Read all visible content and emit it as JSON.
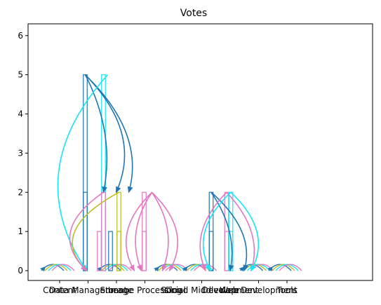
{
  "chart_data": {
    "type": "bar",
    "title": "Votes",
    "xlabel": "",
    "ylabel": "",
    "ylim": [
      -0.25,
      6.3
    ],
    "yticks": [
      0,
      1,
      2,
      3,
      4,
      5,
      6
    ],
    "categories": [
      "Content",
      "Data Management",
      "Storage",
      "Image Processing",
      "Social",
      "Cloud Middleware",
      "Development",
      "Web Development",
      "Tools"
    ],
    "tick_labels": [
      "Content",
      "Data Management",
      "Storage",
      "Image Processing",
      "Social",
      "Cloud Middleware",
      "Development",
      "Web Development",
      "Tools"
    ],
    "groups": [
      {
        "name": "Content",
        "bars": []
      },
      {
        "name": "Data Management",
        "bars": [
          {
            "value": 5,
            "color": "#1f77b4"
          },
          {
            "value": 2,
            "color": "#1f77b4"
          },
          {
            "value": 1,
            "color": "#e377c2"
          },
          {
            "value": 5,
            "color": "#17e6f5"
          },
          {
            "value": 2,
            "color": "#e377c2"
          },
          {
            "value": 1,
            "color": "#1f77b4"
          },
          {
            "value": 2,
            "color": "#bcbd22"
          },
          {
            "value": 1,
            "color": "#bcbd22"
          }
        ]
      },
      {
        "name": "Storage",
        "bars": []
      },
      {
        "name": "Image Processing",
        "bars": [
          {
            "value": 2,
            "color": "#e377c2"
          },
          {
            "value": 1,
            "color": "#e377c2"
          }
        ]
      },
      {
        "name": "Social",
        "bars": []
      },
      {
        "name": "Cloud Middleware",
        "bars": []
      },
      {
        "name": "Development",
        "bars": [
          {
            "value": 2,
            "color": "#1f77b4"
          },
          {
            "value": 1,
            "color": "#1f77b4"
          },
          {
            "value": 2,
            "color": "#e377c2"
          },
          {
            "value": 1,
            "color": "#e377c2"
          },
          {
            "value": 2,
            "color": "#17e6f5"
          },
          {
            "value": 1,
            "color": "#17e6f5"
          }
        ]
      },
      {
        "name": "Web Development",
        "bars": []
      },
      {
        "name": "Tools",
        "bars": []
      }
    ],
    "colors": {
      "blue": "#1f77b4",
      "pink": "#e377c2",
      "cyan": "#17e6f5",
      "olive": "#bcbd22"
    },
    "grid": false,
    "legend": "none"
  }
}
